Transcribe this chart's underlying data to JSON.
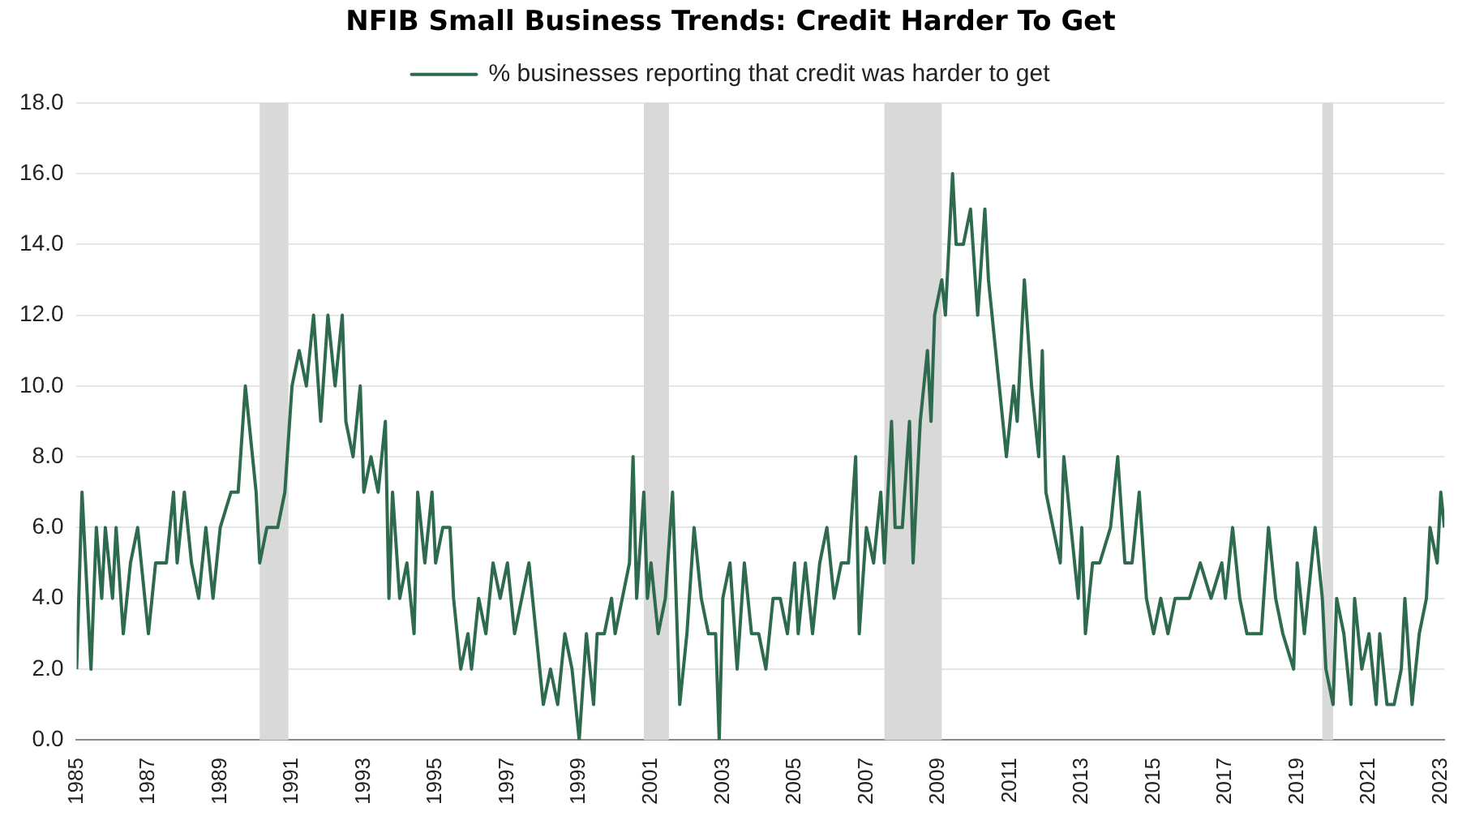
{
  "chart_data": {
    "type": "line",
    "title": "NFIB Small Business Trends: Credit Harder To Get",
    "x": [
      1985.0,
      1985.15,
      1985.4,
      1985.55,
      1985.7,
      1985.8,
      1986.0,
      1986.1,
      1986.3,
      1986.5,
      1986.7,
      1986.9,
      1987.0,
      1987.2,
      1987.5,
      1987.7,
      1987.8,
      1988.0,
      1988.2,
      1988.4,
      1988.6,
      1988.8,
      1989.0,
      1989.3,
      1989.5,
      1989.7,
      1990.0,
      1990.1,
      1990.3,
      1990.6,
      1990.8,
      1991.0,
      1991.2,
      1991.4,
      1991.6,
      1991.8,
      1992.0,
      1992.2,
      1992.4,
      1992.5,
      1992.7,
      1992.9,
      1993.0,
      1993.2,
      1993.4,
      1993.6,
      1993.7,
      1993.8,
      1994.0,
      1994.2,
      1994.4,
      1994.5,
      1994.7,
      1994.9,
      1995.0,
      1995.2,
      1995.4,
      1995.5,
      1995.7,
      1995.9,
      1996.0,
      1996.2,
      1996.4,
      1996.6,
      1996.8,
      1997.0,
      1997.2,
      1997.4,
      1997.6,
      1997.8,
      1998.0,
      1998.2,
      1998.4,
      1998.6,
      1998.8,
      1999.0,
      1999.2,
      1999.4,
      1999.5,
      1999.7,
      1999.9,
      2000.0,
      2000.2,
      2000.4,
      2000.5,
      2000.6,
      2000.8,
      2000.9,
      2001.0,
      2001.2,
      2001.4,
      2001.6,
      2001.8,
      2002.0,
      2002.2,
      2002.4,
      2002.6,
      2002.8,
      2002.9,
      2003.0,
      2003.2,
      2003.4,
      2003.6,
      2003.8,
      2004.0,
      2004.2,
      2004.4,
      2004.6,
      2004.8,
      2005.0,
      2005.1,
      2005.3,
      2005.5,
      2005.7,
      2005.9,
      2006.1,
      2006.3,
      2006.5,
      2006.7,
      2006.8,
      2007.0,
      2007.2,
      2007.4,
      2007.5,
      2007.7,
      2007.8,
      2008.0,
      2008.2,
      2008.3,
      2008.5,
      2008.7,
      2008.8,
      2008.9,
      2009.1,
      2009.2,
      2009.4,
      2009.5,
      2009.7,
      2009.9,
      2010.1,
      2010.3,
      2010.4,
      2010.6,
      2010.7,
      2010.9,
      2011.1,
      2011.2,
      2011.4,
      2011.6,
      2011.8,
      2011.9,
      2012.0,
      2012.2,
      2012.4,
      2012.5,
      2012.7,
      2012.9,
      2013.0,
      2013.1,
      2013.3,
      2013.5,
      2013.8,
      2014.0,
      2014.2,
      2014.4,
      2014.6,
      2014.8,
      2015.0,
      2015.2,
      2015.4,
      2015.6,
      2016.0,
      2016.3,
      2016.6,
      2016.9,
      2017.0,
      2017.2,
      2017.4,
      2017.6,
      2018.0,
      2018.2,
      2018.4,
      2018.6,
      2018.9,
      2019.0,
      2019.2,
      2019.4,
      2019.5,
      2019.7,
      2019.8,
      2020.0,
      2020.1,
      2020.3,
      2020.5,
      2020.6,
      2020.8,
      2021.0,
      2021.2,
      2021.3,
      2021.5,
      2021.7,
      2021.9,
      2022.0,
      2022.2,
      2022.4,
      2022.6,
      2022.7,
      2022.9,
      2023.0,
      2023.1
    ],
    "series": [
      {
        "name": "% businesses reporting that credit was harder to get",
        "color": "#2e6b4e",
        "values": [
          2,
          7,
          2,
          6,
          4,
          6,
          4,
          6,
          3,
          5,
          6,
          4,
          3,
          5,
          5,
          7,
          5,
          7,
          5,
          4,
          6,
          4,
          6,
          7,
          7,
          10,
          7,
          5,
          6,
          6,
          7,
          10,
          11,
          10,
          12,
          9,
          12,
          10,
          12,
          9,
          8,
          10,
          7,
          8,
          7,
          9,
          4,
          7,
          4,
          5,
          3,
          7,
          5,
          7,
          5,
          6,
          6,
          4,
          2,
          3,
          2,
          4,
          3,
          5,
          4,
          5,
          3,
          4,
          5,
          3,
          1,
          2,
          1,
          3,
          2,
          0,
          3,
          1,
          3,
          3,
          4,
          3,
          4,
          5,
          8,
          4,
          7,
          4,
          5,
          3,
          4,
          7,
          1,
          3,
          6,
          4,
          3,
          3,
          0,
          4,
          5,
          2,
          5,
          3,
          3,
          2,
          4,
          4,
          3,
          5,
          3,
          5,
          3,
          5,
          6,
          4,
          5,
          5,
          8,
          3,
          6,
          5,
          7,
          5,
          9,
          6,
          6,
          9,
          5,
          9,
          11,
          9,
          12,
          13,
          12,
          16,
          14,
          14,
          15,
          12,
          15,
          13,
          11,
          10,
          8,
          10,
          9,
          13,
          10,
          8,
          11,
          7,
          6,
          5,
          8,
          6,
          4,
          6,
          3,
          5,
          5,
          6,
          8,
          5,
          5,
          7,
          4,
          3,
          4,
          3,
          4,
          4,
          5,
          4,
          5,
          4,
          6,
          4,
          3,
          3,
          6,
          4,
          3,
          2,
          5,
          3,
          5,
          6,
          4,
          2,
          1,
          4,
          3,
          1,
          4,
          2,
          3,
          1,
          3,
          1,
          1,
          2,
          4,
          1,
          3,
          4,
          6,
          5,
          7,
          6
        ]
      }
    ],
    "xlim": [
      1985,
      2023.1
    ],
    "xticks": [
      1985,
      1987,
      1989,
      1991,
      1993,
      1995,
      1997,
      1999,
      2001,
      2003,
      2005,
      2007,
      2009,
      2011,
      2013,
      2015,
      2017,
      2019,
      2021,
      2023
    ],
    "ylim": [
      0,
      18
    ],
    "yticks": [
      {
        "value": 0,
        "label": "0.0"
      },
      {
        "value": 2,
        "label": "2.0"
      },
      {
        "value": 4,
        "label": "4.0"
      },
      {
        "value": 6,
        "label": "6.0"
      },
      {
        "value": 8,
        "label": "8.0"
      },
      {
        "value": 10,
        "label": "10.0"
      },
      {
        "value": 12,
        "label": "12.0"
      },
      {
        "value": 14,
        "label": "14.0"
      },
      {
        "value": 16,
        "label": "16.0"
      },
      {
        "value": 18,
        "label": "18.0"
      }
    ],
    "bands": [
      {
        "axis": "x",
        "from": 1990.1,
        "to": 1990.9,
        "color": "#d9d9d9"
      },
      {
        "axis": "x",
        "from": 2000.8,
        "to": 2001.5,
        "color": "#d9d9d9"
      },
      {
        "axis": "x",
        "from": 2007.5,
        "to": 2009.1,
        "color": "#d9d9d9"
      },
      {
        "axis": "x",
        "from": 2019.7,
        "to": 2020.0,
        "color": "#d9d9d9"
      }
    ],
    "grid": "y",
    "legend": "top",
    "marker": "none",
    "line_style": "solid"
  }
}
